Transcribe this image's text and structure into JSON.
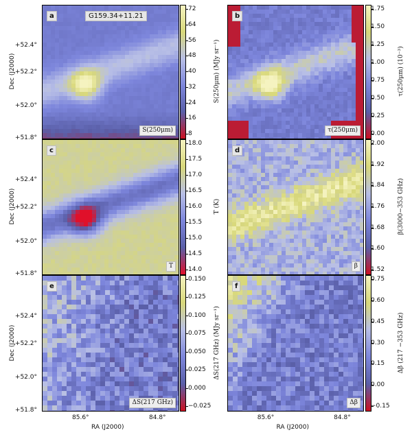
{
  "figure": {
    "object_name": "G159.34+11.21",
    "panels": [
      {
        "letter": "a",
        "map_label": "S(250μm)",
        "colorbar_title": "S(250μm) (MJy sr⁻¹)",
        "colorbar_ticks": [
          "72",
          "64",
          "56",
          "48",
          "40",
          "32",
          "24",
          "16",
          "8"
        ],
        "colormap": [
          "#cc1020",
          "#5a5fa8",
          "#7d86dc",
          "#b8bfe6",
          "#d8d87a",
          "#f5f3c0"
        ]
      },
      {
        "letter": "b",
        "map_label": "τ(250μm)",
        "colorbar_title": "τ(250μm) (10⁻³)",
        "colorbar_ticks": [
          "1.75",
          "1.50",
          "1.25",
          "1.00",
          "0.75",
          "0.50",
          "0.25",
          "0.00"
        ],
        "colormap": [
          "#cc1020",
          "#5a5fa8",
          "#7d86dc",
          "#b8bfe6",
          "#d8d87a",
          "#f5f3c0"
        ]
      },
      {
        "letter": "c",
        "map_label": "T",
        "colorbar_title": "T (K)",
        "colorbar_ticks": [
          "18.0",
          "17.5",
          "17.0",
          "16.5",
          "16.0",
          "15.5",
          "15.0",
          "14.5",
          "14.0"
        ],
        "colormap": [
          "#e0102a",
          "#5a5fa8",
          "#7d86dc",
          "#b8bfe6",
          "#d8d87a",
          "#f5f3c0"
        ]
      },
      {
        "letter": "d",
        "map_label": "β",
        "colorbar_title": "β(3000−353 GHz)",
        "colorbar_ticks": [
          "2.00",
          "1.92",
          "1.84",
          "1.76",
          "1.68",
          "1.60",
          "1.52"
        ],
        "colormap": [
          "#cc1020",
          "#5a5fa8",
          "#7d86dc",
          "#b8bfe6",
          "#d8d87a",
          "#f5f3c0"
        ]
      },
      {
        "letter": "e",
        "map_label": "ΔS(217 GHz)",
        "colorbar_title": "ΔS(217 GHz) (MJy sr⁻¹)",
        "colorbar_ticks": [
          "0.150",
          "0.125",
          "0.100",
          "0.075",
          "0.050",
          "0.025",
          "0.000",
          "−0.025"
        ],
        "colormap": [
          "#cc1020",
          "#5a5fa8",
          "#7d86dc",
          "#b8bfe6",
          "#d8d87a",
          "#f5f3c0"
        ]
      },
      {
        "letter": "f",
        "map_label": "Δβ",
        "colorbar_title": "Δβ (217 −353 GHz)",
        "colorbar_ticks": [
          "0.75",
          "0.60",
          "0.45",
          "0.30",
          "0.15",
          "0.00",
          "−0.15"
        ],
        "colormap": [
          "#cc1020",
          "#5a5fa8",
          "#7d86dc",
          "#b8bfe6",
          "#d8d87a",
          "#f5f3c0"
        ]
      }
    ],
    "dec_axis_label": "Dec (J2000)",
    "dec_ticks": [
      "+52.4°",
      "+52.2°",
      "+52.0°",
      "+51.8°"
    ],
    "ra_axis_label": "RA (J2000)",
    "ra_ticks": [
      "85.6°",
      "84.8°"
    ]
  }
}
